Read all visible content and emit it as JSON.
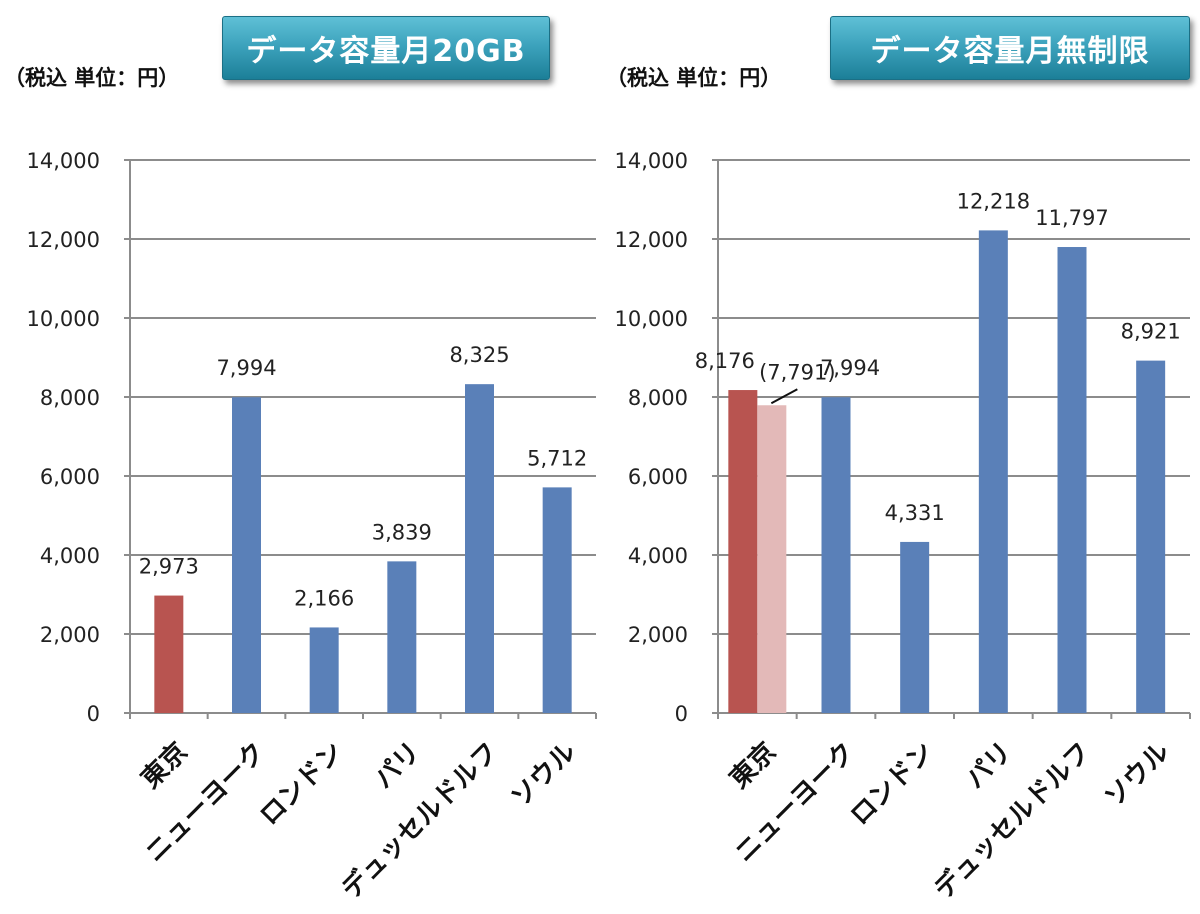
{
  "charts": [
    {
      "title": "データ容量月20GB",
      "unit_label": "（税込 単位：円）",
      "chart_data": {
        "type": "bar",
        "categories": [
          "東京",
          "ニューヨーク",
          "ロンドン",
          "パリ",
          "デュッセルドルフ",
          "ソウル"
        ],
        "values": [
          2973,
          7994,
          2166,
          3839,
          8325,
          5712
        ],
        "value_labels": [
          "2,973",
          "7,994",
          "2,166",
          "3,839",
          "8,325",
          "5,712"
        ],
        "bar_colors": [
          "#b85450",
          "#5a80b8",
          "#5a80b8",
          "#5a80b8",
          "#5a80b8",
          "#5a80b8"
        ],
        "ylim": [
          0,
          14000
        ],
        "yticks": [
          0,
          2000,
          4000,
          6000,
          8000,
          10000,
          12000,
          14000
        ],
        "ytick_labels": [
          "0",
          "2,000",
          "4,000",
          "6,000",
          "8,000",
          "10,000",
          "12,000",
          "14,000"
        ],
        "grid": true
      }
    },
    {
      "title": "データ容量月無制限",
      "unit_label": "（税込 単位：円）",
      "chart_data": {
        "type": "bar",
        "categories": [
          "東京",
          "ニューヨーク",
          "ロンドン",
          "パリ",
          "デュッセルドルフ",
          "ソウル"
        ],
        "values": [
          8176,
          7994,
          4331,
          12218,
          11797,
          8921
        ],
        "value_labels": [
          "8,176",
          "7,994",
          "4,331",
          "12,218",
          "11,797",
          "8,921"
        ],
        "bar_colors": [
          "#b85450",
          "#5a80b8",
          "#5a80b8",
          "#5a80b8",
          "#5a80b8",
          "#5a80b8"
        ],
        "extra_bar": {
          "category_index": 0,
          "value": 7791,
          "label": "(7,791)",
          "color": "#e3b9b8"
        },
        "ylim": [
          0,
          14000
        ],
        "yticks": [
          0,
          2000,
          4000,
          6000,
          8000,
          10000,
          12000,
          14000
        ],
        "ytick_labels": [
          "0",
          "2,000",
          "4,000",
          "6,000",
          "8,000",
          "10,000",
          "12,000",
          "14,000"
        ],
        "grid": true
      }
    }
  ]
}
